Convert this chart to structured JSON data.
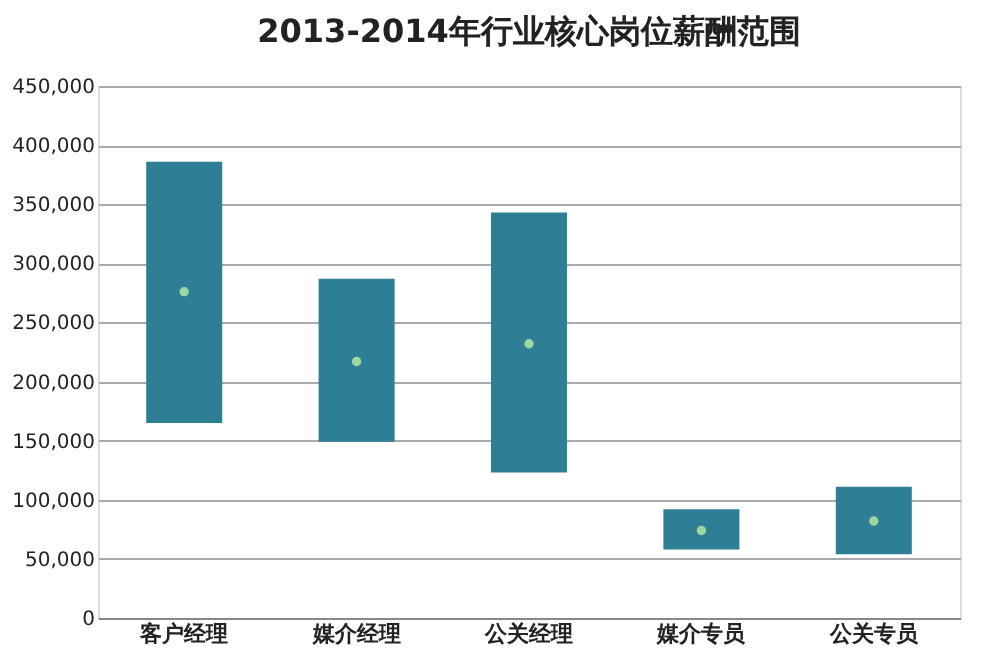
{
  "chart_data": {
    "type": "bar",
    "title": "2013-2014年行业核心岗位薪酬范围",
    "categories": [
      "客户经理",
      "媒介经理",
      "公关经理",
      "媒介专员",
      "公关专员"
    ],
    "series": [
      {
        "type": "bar",
        "color": "#2e7f96",
        "base": [
          165000,
          149000,
          123000,
          58000,
          54000
        ],
        "values": [
          221000,
          138000,
          220000,
          34000,
          57000
        ]
      },
      {
        "type": "scatter",
        "color": "#9fd89f",
        "marker": "circle",
        "x": [
          "客户经理",
          "媒介经理",
          "公关经理",
          "媒介专员",
          "公关专员"
        ],
        "values": [
          276000,
          217000,
          232000,
          74000,
          82000
        ]
      }
    ],
    "ylim": [
      0,
      450000
    ],
    "yticks": [
      0,
      {
        "value": 50000,
        "label": "50,000"
      },
      {
        "value": 100000,
        "label": "100,000"
      },
      {
        "value": 150000,
        "label": "150,000"
      },
      {
        "value": 200000,
        "label": "200,000"
      },
      {
        "value": 250000,
        "label": "250,000"
      },
      {
        "value": 300000,
        "label": "300,000"
      },
      {
        "value": 350000,
        "label": "350,000"
      },
      {
        "value": 400000,
        "label": "400,000"
      },
      {
        "value": 450000,
        "label": "450,000"
      }
    ],
    "grid": "y"
  }
}
